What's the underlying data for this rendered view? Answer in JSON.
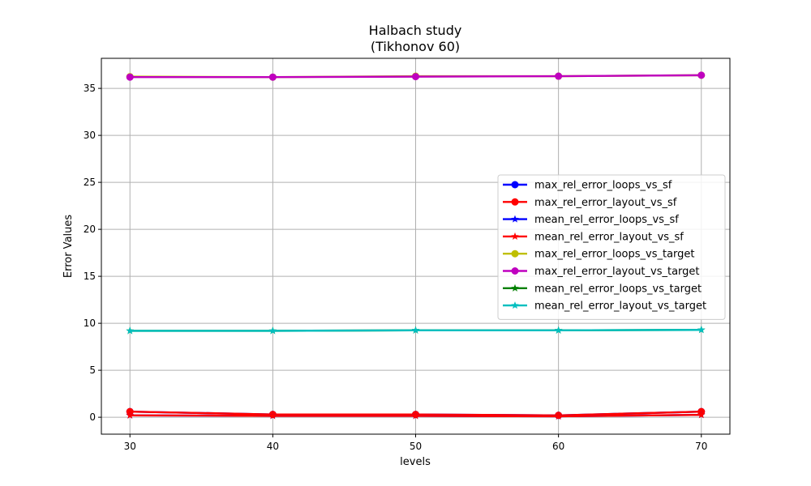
{
  "chart_data": {
    "type": "line",
    "title": [
      "Halbach study",
      "(Tikhonov 60)"
    ],
    "xlabel": "levels",
    "ylabel": "Error Values",
    "x": [
      30,
      40,
      50,
      60,
      70
    ],
    "xticks": [
      30,
      40,
      50,
      60,
      70
    ],
    "yticks": [
      0,
      5,
      10,
      15,
      20,
      25,
      30,
      35
    ],
    "xlim": [
      28,
      72
    ],
    "ylim": [
      -1.8,
      38.2
    ],
    "grid": true,
    "legend_position": "center-right",
    "series": [
      {
        "name": "max_rel_error_loops_vs_sf",
        "color": "#0000ff",
        "marker": "circle",
        "values": [
          0.6,
          0.3,
          0.3,
          0.2,
          0.6
        ]
      },
      {
        "name": "max_rel_error_layout_vs_sf",
        "color": "#ff0000",
        "marker": "circle",
        "values": [
          0.6,
          0.3,
          0.3,
          0.2,
          0.6
        ]
      },
      {
        "name": "mean_rel_error_loops_vs_sf",
        "color": "#0000ff",
        "marker": "star",
        "values": [
          0.2,
          0.15,
          0.15,
          0.1,
          0.25
        ]
      },
      {
        "name": "mean_rel_error_layout_vs_sf",
        "color": "#ff0000",
        "marker": "star",
        "values": [
          0.2,
          0.15,
          0.15,
          0.1,
          0.25
        ]
      },
      {
        "name": "max_rel_error_loops_vs_target",
        "color": "#bfbf00",
        "marker": "circle",
        "values": [
          36.25,
          36.2,
          36.3,
          36.3,
          36.4
        ]
      },
      {
        "name": "max_rel_error_layout_vs_target",
        "color": "#bf00bf",
        "marker": "circle",
        "values": [
          36.2,
          36.2,
          36.25,
          36.3,
          36.4
        ]
      },
      {
        "name": "mean_rel_error_loops_vs_target",
        "color": "#008000",
        "marker": "star",
        "values": [
          9.2,
          9.2,
          9.25,
          9.25,
          9.3
        ]
      },
      {
        "name": "mean_rel_error_layout_vs_target",
        "color": "#00bfbf",
        "marker": "star",
        "values": [
          9.2,
          9.2,
          9.25,
          9.25,
          9.3
        ]
      }
    ]
  }
}
